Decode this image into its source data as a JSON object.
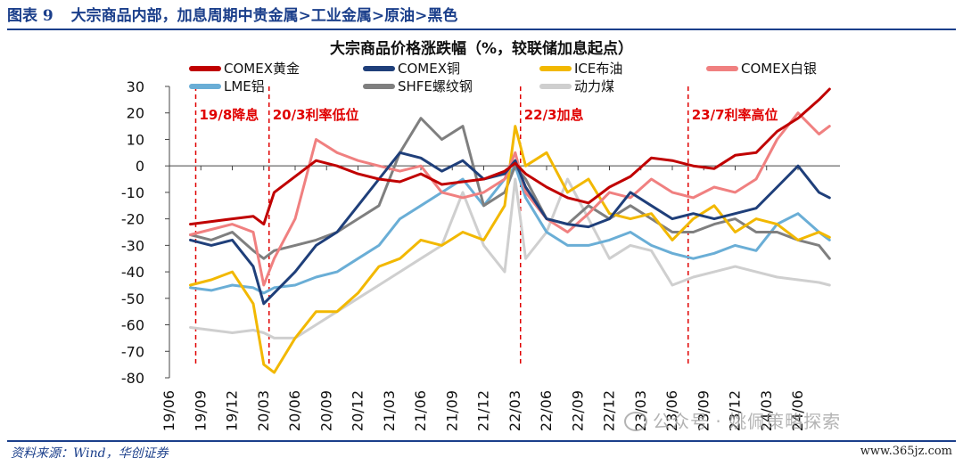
{
  "figure": {
    "number": "图表 9",
    "caption": "大宗商品内部，加息周期中贵金属>工业金属>原油>黑色"
  },
  "footer": {
    "source": "资料来源：Wind，华创证券",
    "site": "www.365jz.com",
    "watermark": "公众号 · 姚佩策略探索"
  },
  "chart_data": {
    "type": "line",
    "title": "大宗商品价格涨跌幅（%，较联储加息起点）",
    "xlabel": "",
    "ylabel": "",
    "ylim": [
      -80,
      30
    ],
    "yticks": [
      30,
      20,
      10,
      0,
      -10,
      -20,
      -30,
      -40,
      -50,
      -60,
      -70,
      -80
    ],
    "xlim": [
      "2019-06",
      "2024-10"
    ],
    "xticks": [
      "19/06",
      "19/09",
      "19/12",
      "20/03",
      "20/06",
      "20/09",
      "20/12",
      "21/03",
      "21/06",
      "21/09",
      "21/12",
      "22/03",
      "22/06",
      "22/09",
      "22/12",
      "23/03",
      "23/06",
      "23/09",
      "23/12",
      "24/03",
      "24/06"
    ],
    "grid": false,
    "legend_position": "top",
    "annotations": [
      {
        "x": "2019-08",
        "label": "19/8降息"
      },
      {
        "x": "2020-03",
        "label": "20/3利率低位"
      },
      {
        "x": "2022-03",
        "label": "22/3加息"
      },
      {
        "x": "2023-07",
        "label": "23/7利率高位"
      }
    ],
    "x": [
      "2019-08",
      "2019-10",
      "2019-12",
      "2020-02",
      "2020-03",
      "2020-04",
      "2020-06",
      "2020-08",
      "2020-10",
      "2020-12",
      "2021-02",
      "2021-04",
      "2021-06",
      "2021-08",
      "2021-10",
      "2021-12",
      "2022-02",
      "2022-03",
      "2022-04",
      "2022-06",
      "2022-08",
      "2022-10",
      "2022-12",
      "2023-02",
      "2023-04",
      "2023-06",
      "2023-08",
      "2023-10",
      "2023-12",
      "2024-02",
      "2024-04",
      "2024-06",
      "2024-08",
      "2024-09"
    ],
    "series": [
      {
        "name": "COMEX黄金",
        "color": "#c00000",
        "values": [
          -22,
          -21,
          -20,
          -19,
          -22,
          -10,
          -4,
          2,
          0,
          -3,
          -5,
          -6,
          -3,
          -7,
          -6,
          -5,
          -2,
          1,
          -3,
          -8,
          -12,
          -14,
          -8,
          -4,
          3,
          2,
          0,
          -1,
          4,
          5,
          13,
          18,
          25,
          29
        ]
      },
      {
        "name": "COMEX铜",
        "color": "#1f3f7a",
        "values": [
          -28,
          -30,
          -28,
          -38,
          -52,
          -48,
          -40,
          -30,
          -25,
          -15,
          -5,
          5,
          3,
          -2,
          2,
          -5,
          -3,
          2,
          -8,
          -20,
          -22,
          -23,
          -20,
          -10,
          -15,
          -20,
          -18,
          -20,
          -18,
          -16,
          -8,
          0,
          -10,
          -12
        ]
      },
      {
        "name": "ICE布油",
        "color": "#f2b800",
        "values": [
          -45,
          -43,
          -40,
          -52,
          -75,
          -78,
          -65,
          -55,
          -55,
          -48,
          -38,
          -35,
          -28,
          -30,
          -25,
          -28,
          -15,
          15,
          0,
          5,
          -10,
          -5,
          -18,
          -20,
          -18,
          -28,
          -20,
          -15,
          -25,
          -20,
          -22,
          -28,
          -25,
          -27
        ]
      },
      {
        "name": "COMEX白银",
        "color": "#f08080",
        "values": [
          -26,
          -24,
          -22,
          -25,
          -45,
          -35,
          -20,
          10,
          5,
          2,
          0,
          -2,
          0,
          -10,
          -12,
          -10,
          -5,
          5,
          -10,
          -20,
          -25,
          -18,
          -10,
          -12,
          -5,
          -10,
          -12,
          -8,
          -10,
          -5,
          10,
          20,
          12,
          15
        ]
      },
      {
        "name": "LME铝",
        "color": "#6aaed6",
        "values": [
          -46,
          -47,
          -45,
          -46,
          -48,
          -46,
          -45,
          -42,
          -40,
          -35,
          -30,
          -20,
          -15,
          -10,
          -5,
          -15,
          -5,
          0,
          -12,
          -25,
          -30,
          -30,
          -28,
          -25,
          -30,
          -33,
          -35,
          -33,
          -30,
          -32,
          -22,
          -18,
          -25,
          -28
        ]
      },
      {
        "name": "SHFE螺纹钢",
        "color": "#7f7f7f",
        "values": [
          -26,
          -28,
          -25,
          -32,
          -35,
          -32,
          -30,
          -28,
          -25,
          -20,
          -15,
          5,
          18,
          10,
          15,
          -15,
          -10,
          0,
          -5,
          -20,
          -22,
          -15,
          -20,
          -15,
          -20,
          -25,
          -25,
          -22,
          -20,
          -25,
          -25,
          -28,
          -30,
          -35
        ]
      },
      {
        "name": "动力煤",
        "color": "#cfcfcf",
        "values": [
          -61,
          -62,
          -63,
          -62,
          -63,
          -65,
          -65,
          -60,
          -55,
          -50,
          -45,
          -40,
          -35,
          -30,
          -10,
          -30,
          -40,
          -5,
          -35,
          -25,
          -5,
          -20,
          -35,
          -30,
          -32,
          -45,
          -42,
          -40,
          -38,
          -40,
          -42,
          -43,
          -44,
          -45
        ]
      }
    ]
  }
}
